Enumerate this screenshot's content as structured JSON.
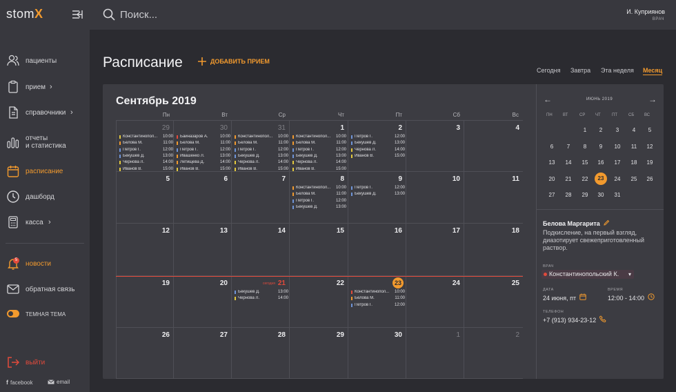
{
  "app": {
    "logo": "stom",
    "logo_x": "X"
  },
  "sidebar": {
    "items": [
      {
        "label": "пациенты",
        "icon": "patients-icon"
      },
      {
        "label": "прием",
        "icon": "clipboard-icon",
        "chevron": "›"
      },
      {
        "label": "справочники",
        "icon": "document-icon",
        "chevron": "›"
      },
      {
        "label": "отчеты",
        "label2": "и статистика",
        "icon": "bar-chart-icon"
      },
      {
        "label": "расписание",
        "icon": "calendar-icon",
        "active": true
      },
      {
        "label": "дашборд",
        "icon": "clock-icon"
      },
      {
        "label": "касса",
        "icon": "calculator-icon",
        "chevron": "›"
      }
    ],
    "news": {
      "label": "новости",
      "badge": "5"
    },
    "feedback": {
      "label": "обратная связь"
    },
    "theme": {
      "label": "ТЕМНАЯ ТЕМА"
    },
    "exit": {
      "label": "выйти"
    },
    "social": {
      "facebook": "facebook",
      "email": "email"
    }
  },
  "topbar": {
    "search_placeholder": "Поиск...",
    "user_name": "И. Куприянов",
    "user_role": "ВРАЧ"
  },
  "page": {
    "title": "Расписание",
    "add_label": "ДОБАВИТЬ ПРИЕМ",
    "views": [
      "Сегодня",
      "Завтра",
      "Эта неделя",
      "Месяц"
    ],
    "active_view": "Месяц"
  },
  "calendar": {
    "month_title": "Сентябрь 2019",
    "weekdays": [
      "Пн",
      "Вт",
      "Ср",
      "Чт",
      "Пт",
      "Сб",
      "Вс"
    ],
    "today_label": "сегодня",
    "colors": {
      "orange": "#f29a2e",
      "blue": "#6f95d8",
      "yellow": "#e3c93e",
      "red": "#e24a3b"
    },
    "weeks": [
      [
        {
          "day": "29",
          "muted": true,
          "appts": [
            {
              "name": "Константинопол...",
              "time": "10:00",
              "c": "yellow"
            },
            {
              "name": "Белова М.",
              "time": "11:00",
              "c": "orange"
            },
            {
              "name": "Петров Г.",
              "time": "12:00",
              "c": "blue"
            },
            {
              "name": "Бекушев Д.",
              "time": "13:00",
              "c": "blue"
            },
            {
              "name": "Чернова Л.",
              "time": "14:00",
              "c": "yellow"
            },
            {
              "name": "Иванов В.",
              "time": "15:00",
              "c": "yellow"
            }
          ]
        },
        {
          "day": "30",
          "muted": true,
          "appts": [
            {
              "name": "Байназаров А.",
              "time": "10:00",
              "c": "red"
            },
            {
              "name": "Белова М.",
              "time": "11:00",
              "c": "orange"
            },
            {
              "name": "Петров Г.",
              "time": "12:00",
              "c": "blue"
            },
            {
              "name": "Ивашенко Л.",
              "time": "13:00",
              "c": "orange"
            },
            {
              "name": "Летищева Д.",
              "time": "14:00",
              "c": "orange"
            },
            {
              "name": "Иванов В.",
              "time": "15:00",
              "c": "yellow"
            }
          ]
        },
        {
          "day": "31",
          "muted": true,
          "appts": [
            {
              "name": "Константинопол...",
              "time": "10:00",
              "c": "orange"
            },
            {
              "name": "Белова М.",
              "time": "11:00",
              "c": "orange"
            },
            {
              "name": "Петров Г.",
              "time": "12:00",
              "c": "blue"
            },
            {
              "name": "Бекушев Д.",
              "time": "13:00",
              "c": "blue"
            },
            {
              "name": "Чернова Л.",
              "time": "14:00",
              "c": "yellow"
            },
            {
              "name": "Иванов В.",
              "time": "15:00",
              "c": "yellow"
            }
          ]
        },
        {
          "day": "1",
          "appts": [
            {
              "name": "Константинопол...",
              "time": "10:00",
              "c": "orange"
            },
            {
              "name": "Белова М.",
              "time": "11:00",
              "c": "orange"
            },
            {
              "name": "Петров Г.",
              "time": "12:00",
              "c": "blue"
            },
            {
              "name": "Бекушев Д.",
              "time": "13:00",
              "c": "blue"
            },
            {
              "name": "Чернова Л.",
              "time": "14:00",
              "c": "yellow"
            },
            {
              "name": "Иванов В.",
              "time": "15:00",
              "c": "yellow"
            }
          ]
        },
        {
          "day": "2",
          "appts": [
            {
              "name": "Петров Г.",
              "time": "12:00",
              "c": "blue"
            },
            {
              "name": "Бекушев Д.",
              "time": "13:00",
              "c": "blue"
            },
            {
              "name": "Чернова Л.",
              "time": "14:00",
              "c": "yellow"
            },
            {
              "name": "Иванов В.",
              "time": "15:00",
              "c": "yellow"
            }
          ]
        },
        {
          "day": "3",
          "appts": []
        },
        {
          "day": "4",
          "appts": []
        }
      ],
      [
        {
          "day": "5",
          "appts": []
        },
        {
          "day": "6",
          "appts": []
        },
        {
          "day": "7",
          "appts": []
        },
        {
          "day": "8",
          "appts": [
            {
              "name": "Константинопол...",
              "time": "10:00",
              "c": "orange"
            },
            {
              "name": "Белова М.",
              "time": "11:00",
              "c": "orange"
            },
            {
              "name": "Петров Г.",
              "time": "12:00",
              "c": "blue"
            },
            {
              "name": "Бекушев Д.",
              "time": "13:00",
              "c": "blue"
            }
          ]
        },
        {
          "day": "9",
          "appts": [
            {
              "name": "Петров Г.",
              "time": "12:00",
              "c": "blue"
            },
            {
              "name": "Бекушев Д.",
              "time": "13:00",
              "c": "blue"
            }
          ]
        },
        {
          "day": "10",
          "appts": []
        },
        {
          "day": "11",
          "appts": []
        }
      ],
      [
        {
          "day": "12",
          "appts": []
        },
        {
          "day": "13",
          "appts": []
        },
        {
          "day": "14",
          "appts": []
        },
        {
          "day": "15",
          "appts": []
        },
        {
          "day": "16",
          "appts": []
        },
        {
          "day": "17",
          "appts": []
        },
        {
          "day": "18",
          "appts": []
        }
      ],
      [
        {
          "day": "19",
          "appts": []
        },
        {
          "day": "20",
          "appts": []
        },
        {
          "day": "21",
          "today": true,
          "appts": [
            {
              "name": "Бекушев Д.",
              "time": "13:00",
              "c": "blue"
            },
            {
              "name": "Чернова Л.",
              "time": "14:00",
              "c": "yellow"
            }
          ]
        },
        {
          "day": "22",
          "appts": []
        },
        {
          "day": "23",
          "selected": true,
          "appts": [
            {
              "name": "Константинопол...",
              "time": "10:00",
              "c": "red"
            },
            {
              "name": "Белова М.",
              "time": "11:00",
              "c": "orange"
            },
            {
              "name": "Петров Г.",
              "time": "12:00",
              "c": "blue"
            }
          ]
        },
        {
          "day": "24",
          "appts": []
        },
        {
          "day": "25",
          "appts": []
        }
      ],
      [
        {
          "day": "26",
          "appts": []
        },
        {
          "day": "27",
          "appts": []
        },
        {
          "day": "28",
          "appts": []
        },
        {
          "day": "29",
          "appts": []
        },
        {
          "day": "30",
          "appts": []
        },
        {
          "day": "1",
          "muted": true,
          "appts": []
        },
        {
          "day": "2",
          "muted": true,
          "appts": []
        }
      ]
    ]
  },
  "mini_calendar": {
    "title": "ИЮНЬ 2019",
    "prev": "←",
    "next": "→",
    "weekdays": [
      "ПН",
      "ВТ",
      "СР",
      "ЧТ",
      "ПТ",
      "СБ",
      "ВС"
    ],
    "selected": "23",
    "rows": [
      [
        "",
        "",
        "1",
        "2",
        "3",
        "4",
        "5"
      ],
      [
        "6",
        "7",
        "8",
        "9",
        "10",
        "11",
        "12"
      ],
      [
        "13",
        "14",
        "15",
        "16",
        "17",
        "18",
        "19"
      ],
      [
        "20",
        "21",
        "22",
        "23",
        "24",
        "25",
        "26"
      ],
      [
        "27",
        "28",
        "29",
        "30",
        "31",
        "",
        ""
      ]
    ]
  },
  "details": {
    "patient_name": "Белова Маргарита",
    "description": "Подкисление, на первый взгляд, диазотирует свежеприготовленный раствор.",
    "doctor_label": "ВРАЧ",
    "doctor_value": "Константинопольский К.",
    "date_label": "ДАТА",
    "date_value": "24 июня, пт",
    "time_label": "ВРЕМЯ",
    "time_value": "12:00 - 14:00",
    "phone_label": "ТЕЛЕФОН",
    "phone_value": "+7 (913) 934-23-12"
  }
}
